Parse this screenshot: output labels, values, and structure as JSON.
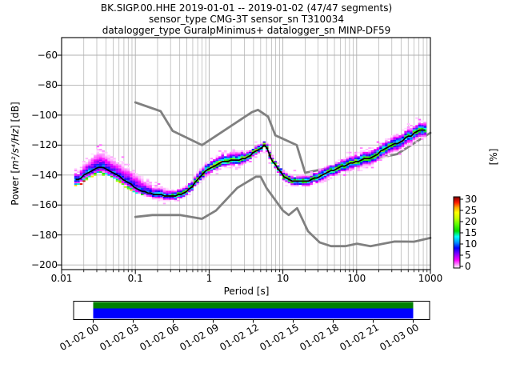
{
  "figure_title": {
    "line1": "BK.SIGP.00.HHE   2019-01-01 -- 2019-01-02  (47/47 segments)",
    "line2": "sensor_type CMG-3T sensor_sn T310034",
    "line3": "datalogger_type GuralpMinimus+ datalogger_sn MINP-DF59"
  },
  "axes": {
    "xlabel": "Period [s]",
    "ylabel_pre": "Power [",
    "ylabel_math": "m²/s⁴/Hz",
    "ylabel_post": "] [dB]",
    "x_tick_labels": [
      "0.01",
      "0.1",
      "1",
      "10",
      "100",
      "1000"
    ],
    "y_tick_labels": [
      "−60",
      "−80",
      "−100",
      "−120",
      "−140",
      "−160",
      "−180",
      "−200"
    ]
  },
  "colorbar": {
    "label": "[%]",
    "tick_labels": [
      "0",
      "5",
      "10",
      "15",
      "20",
      "25",
      "30"
    ]
  },
  "timeline": {
    "tick_labels": [
      "01-02 00",
      "01-02 03",
      "01-02 06",
      "01-02 09",
      "01-02 12",
      "01-02 15",
      "01-02 18",
      "01-02 21",
      "01-03 00"
    ],
    "coverage_color": "#008000",
    "segment_color": "#0000ff"
  },
  "colors": {
    "grid": "#b0b0b0",
    "noise_model": "#808080",
    "mode_line": "#000000",
    "frame": "#000000",
    "colormap_stops": [
      [
        0.0,
        "#ffffff"
      ],
      [
        0.05,
        "#ff8cff"
      ],
      [
        0.11,
        "#ff00ff"
      ],
      [
        0.2,
        "#8000ff"
      ],
      [
        0.28,
        "#0000ff"
      ],
      [
        0.36,
        "#0095ff"
      ],
      [
        0.44,
        "#00ffff"
      ],
      [
        0.52,
        "#00dc00"
      ],
      [
        0.62,
        "#64ff00"
      ],
      [
        0.7,
        "#c8ff00"
      ],
      [
        0.78,
        "#ffff00"
      ],
      [
        0.85,
        "#ffa500"
      ],
      [
        0.92,
        "#ff1900"
      ],
      [
        1.0,
        "#7d0000"
      ]
    ]
  },
  "chart_data": {
    "type": "heatmap",
    "title": "BK.SIGP.00.HHE 2019-01-01 -- 2019-01-02 (47/47 segments)",
    "xlabel": "Period [s]",
    "ylabel": "Power [m^2/s^4/Hz] [dB]",
    "x_scale": "log",
    "xlim": [
      0.01,
      1000
    ],
    "ylim": [
      -203,
      -48
    ],
    "x_ticks": [
      0.01,
      0.1,
      1,
      10,
      100,
      1000
    ],
    "y_ticks": [
      -60,
      -80,
      -100,
      -120,
      -140,
      -160,
      -180,
      -200
    ],
    "grid": true,
    "colorbar": {
      "label": "[%]",
      "min": 0,
      "max": 31,
      "ticks": [
        0,
        5,
        10,
        15,
        20,
        25,
        30
      ]
    },
    "histogram": {
      "period_bin_decades": 0.0376,
      "db_bin": 1,
      "period_range": [
        0.0155,
        880
      ]
    },
    "mode_line_period_db": [
      [
        0.016,
        -143.5
      ],
      [
        0.02,
        -140.5
      ],
      [
        0.025,
        -137.0
      ],
      [
        0.031,
        -134.5
      ],
      [
        0.038,
        -135.5
      ],
      [
        0.048,
        -138.0
      ],
      [
        0.065,
        -142.0
      ],
      [
        0.085,
        -146.0
      ],
      [
        0.105,
        -149.5
      ],
      [
        0.14,
        -151.5
      ],
      [
        0.19,
        -153.0
      ],
      [
        0.26,
        -153.8
      ],
      [
        0.35,
        -153.8
      ],
      [
        0.42,
        -153.0
      ],
      [
        0.5,
        -150.5
      ],
      [
        0.59,
        -147.5
      ],
      [
        0.75,
        -141.5
      ],
      [
        0.97,
        -136.0
      ],
      [
        1.25,
        -133.0
      ],
      [
        1.6,
        -131.0
      ],
      [
        2.1,
        -130.3
      ],
      [
        2.6,
        -130.0
      ],
      [
        3.4,
        -127.5
      ],
      [
        4.9,
        -122.5
      ],
      [
        5.8,
        -119.8
      ],
      [
        6.9,
        -129.0
      ],
      [
        8.5,
        -135.5
      ],
      [
        10.2,
        -140.5
      ],
      [
        12.2,
        -143.5
      ],
      [
        15,
        -144.5
      ],
      [
        18.5,
        -144.5
      ],
      [
        22,
        -143.8
      ],
      [
        28,
        -142.0
      ],
      [
        36,
        -139.5
      ],
      [
        44,
        -137.5
      ],
      [
        60,
        -134.5
      ],
      [
        87,
        -131.8
      ],
      [
        126,
        -129.5
      ],
      [
        170,
        -128.0
      ],
      [
        235,
        -122.8
      ],
      [
        300,
        -120.3
      ],
      [
        390,
        -117.8
      ],
      [
        460,
        -115.5
      ],
      [
        560,
        -113.3
      ],
      [
        700,
        -110.5
      ],
      [
        860,
        -110.0
      ]
    ],
    "spread_period_up_down_peakpct": [
      [
        0.016,
        6,
        4,
        14
      ],
      [
        0.02,
        9,
        4,
        12
      ],
      [
        0.031,
        13,
        4.5,
        11
      ],
      [
        0.048,
        11,
        4,
        11
      ],
      [
        0.07,
        12,
        4,
        10
      ],
      [
        0.1,
        13,
        4,
        10
      ],
      [
        0.14,
        9,
        3.5,
        12
      ],
      [
        0.19,
        6,
        3.5,
        16
      ],
      [
        0.28,
        4.5,
        3.5,
        20
      ],
      [
        0.4,
        4.5,
        3.5,
        22
      ],
      [
        0.6,
        5,
        3.5,
        24
      ],
      [
        1.0,
        5.5,
        4,
        26
      ],
      [
        1.6,
        6.5,
        4,
        23
      ],
      [
        2.6,
        6.5,
        4.5,
        21
      ],
      [
        4.0,
        4,
        3,
        27
      ],
      [
        5.8,
        3.5,
        3,
        30
      ],
      [
        8,
        3.5,
        3,
        28
      ],
      [
        12,
        4,
        3.5,
        26
      ],
      [
        18,
        4,
        4,
        24
      ],
      [
        28,
        5,
        4.5,
        22
      ],
      [
        60,
        5.5,
        5,
        22
      ],
      [
        126,
        6,
        5.5,
        22
      ],
      [
        300,
        6.5,
        6,
        20
      ],
      [
        560,
        6.5,
        6,
        20
      ],
      [
        860,
        6.5,
        5.5,
        20
      ]
    ],
    "noise_models": {
      "nhnm": [
        [
          0.1,
          -91.5
        ],
        [
          0.22,
          -97.4
        ],
        [
          0.32,
          -110.5
        ],
        [
          0.8,
          -120
        ],
        [
          3.8,
          -98
        ],
        [
          4.6,
          -96.5
        ],
        [
          6.3,
          -101
        ],
        [
          7.9,
          -113.5
        ],
        [
          15.4,
          -120
        ],
        [
          20,
          -138.5
        ],
        [
          354.8,
          -126
        ],
        [
          1000,
          -111.8
        ]
      ],
      "nlnm": [
        [
          0.1,
          -168
        ],
        [
          0.17,
          -166.7
        ],
        [
          0.4,
          -166.7
        ],
        [
          0.8,
          -169.2
        ],
        [
          1.24,
          -163.7
        ],
        [
          2.4,
          -148.6
        ],
        [
          4.3,
          -141.1
        ],
        [
          5,
          -141.1
        ],
        [
          6,
          -148.6
        ],
        [
          10,
          -163.7
        ],
        [
          12,
          -166.7
        ],
        [
          15.6,
          -162.1
        ],
        [
          21.9,
          -177.5
        ],
        [
          31.6,
          -185
        ],
        [
          45,
          -187.5
        ],
        [
          70,
          -187.5
        ],
        [
          101,
          -185.8
        ],
        [
          154,
          -187.5
        ],
        [
          328,
          -184.4
        ],
        [
          600,
          -184.5
        ],
        [
          1000,
          -182
        ]
      ]
    }
  }
}
